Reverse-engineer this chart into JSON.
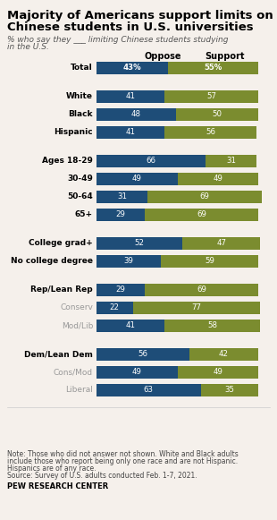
{
  "title": "Majority of Americans support limits on\nChinese students in U.S. universities",
  "subtitle": "% who say they ___ limiting Chinese students studying\nin the U.S.",
  "categories": [
    "Total",
    "White",
    "Black",
    "Hispanic",
    "Ages 18-29",
    "30-49",
    "50-64",
    "65+",
    "College grad+",
    "No college degree",
    "Rep/Lean Rep",
    "Conserv",
    "Mod/Lib",
    "Dem/Lean Dem",
    "Cons/Mod",
    "Liberal"
  ],
  "oppose": [
    43,
    41,
    48,
    41,
    66,
    49,
    31,
    29,
    52,
    39,
    29,
    22,
    41,
    56,
    49,
    63
  ],
  "support": [
    55,
    57,
    50,
    56,
    31,
    49,
    69,
    69,
    47,
    59,
    69,
    77,
    58,
    42,
    49,
    35
  ],
  "bold_rows": [
    0,
    1,
    2,
    3,
    4,
    5,
    6,
    7,
    8,
    9,
    10,
    13
  ],
  "gray_rows": [
    11,
    12,
    14,
    15
  ],
  "total_row": 0,
  "oppose_color": "#1e4d78",
  "support_color": "#7b8c2f",
  "background_color": "#f5f0eb",
  "note1": "Note: Those who did not answer not shown. White and Black adults",
  "note2": "include those who report being only one race and are not Hispanic.",
  "note3": "Hispanics are of any race.",
  "note4": "Source: Survey of U.S. adults conducted Feb. 1-7, 2021.",
  "source_bold": "PEW RESEARCH CENTER",
  "group_break_after": [
    0,
    3,
    7,
    9,
    12,
    15
  ]
}
